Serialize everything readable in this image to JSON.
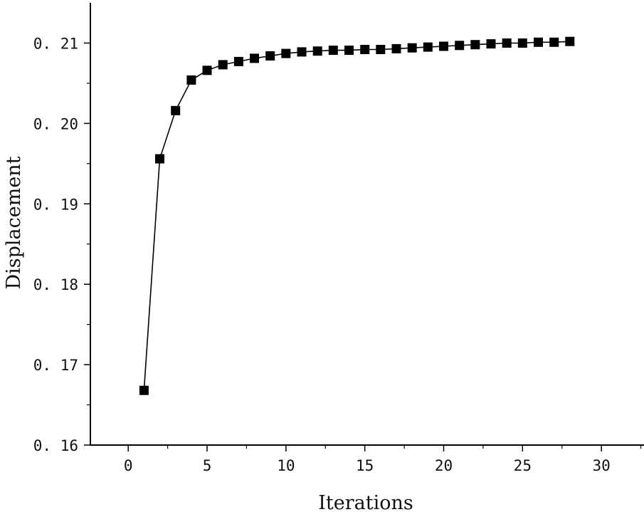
{
  "chart_data": {
    "type": "line",
    "title": "",
    "xlabel": "Iterations",
    "ylabel": "Displacement",
    "xlim": [
      -2.4,
      32.7
    ],
    "ylim": [
      0.16,
      0.215
    ],
    "xticks": [
      0,
      5,
      10,
      15,
      20,
      25,
      30
    ],
    "xtick_labels": [
      "0",
      "5",
      "10",
      "15",
      "20",
      "25",
      "30"
    ],
    "yticks": [
      0.16,
      0.17,
      0.18,
      0.19,
      0.2,
      0.21
    ],
    "ytick_labels": [
      "0. 16",
      "0. 17",
      "0. 18",
      "0. 19",
      "0. 20",
      "0. 21"
    ],
    "grid": false,
    "legend": "none",
    "marker": "square",
    "color": "#000000",
    "series": [
      {
        "x": [
          1,
          2,
          3,
          4,
          5,
          6,
          7,
          8,
          9,
          10,
          11,
          12,
          13,
          14,
          15,
          16,
          17,
          18,
          19,
          20,
          21,
          22,
          23,
          24,
          25,
          26,
          27,
          28
        ],
        "values": [
          0.1668,
          0.1956,
          0.2016,
          0.2054,
          0.2066,
          0.2073,
          0.2077,
          0.2081,
          0.2084,
          0.2087,
          0.2089,
          0.209,
          0.2091,
          0.2091,
          0.2092,
          0.2092,
          0.2093,
          0.2094,
          0.2095,
          0.2096,
          0.2097,
          0.2098,
          0.2099,
          0.21,
          0.21,
          0.2101,
          0.2101,
          0.2102
        ]
      }
    ]
  }
}
